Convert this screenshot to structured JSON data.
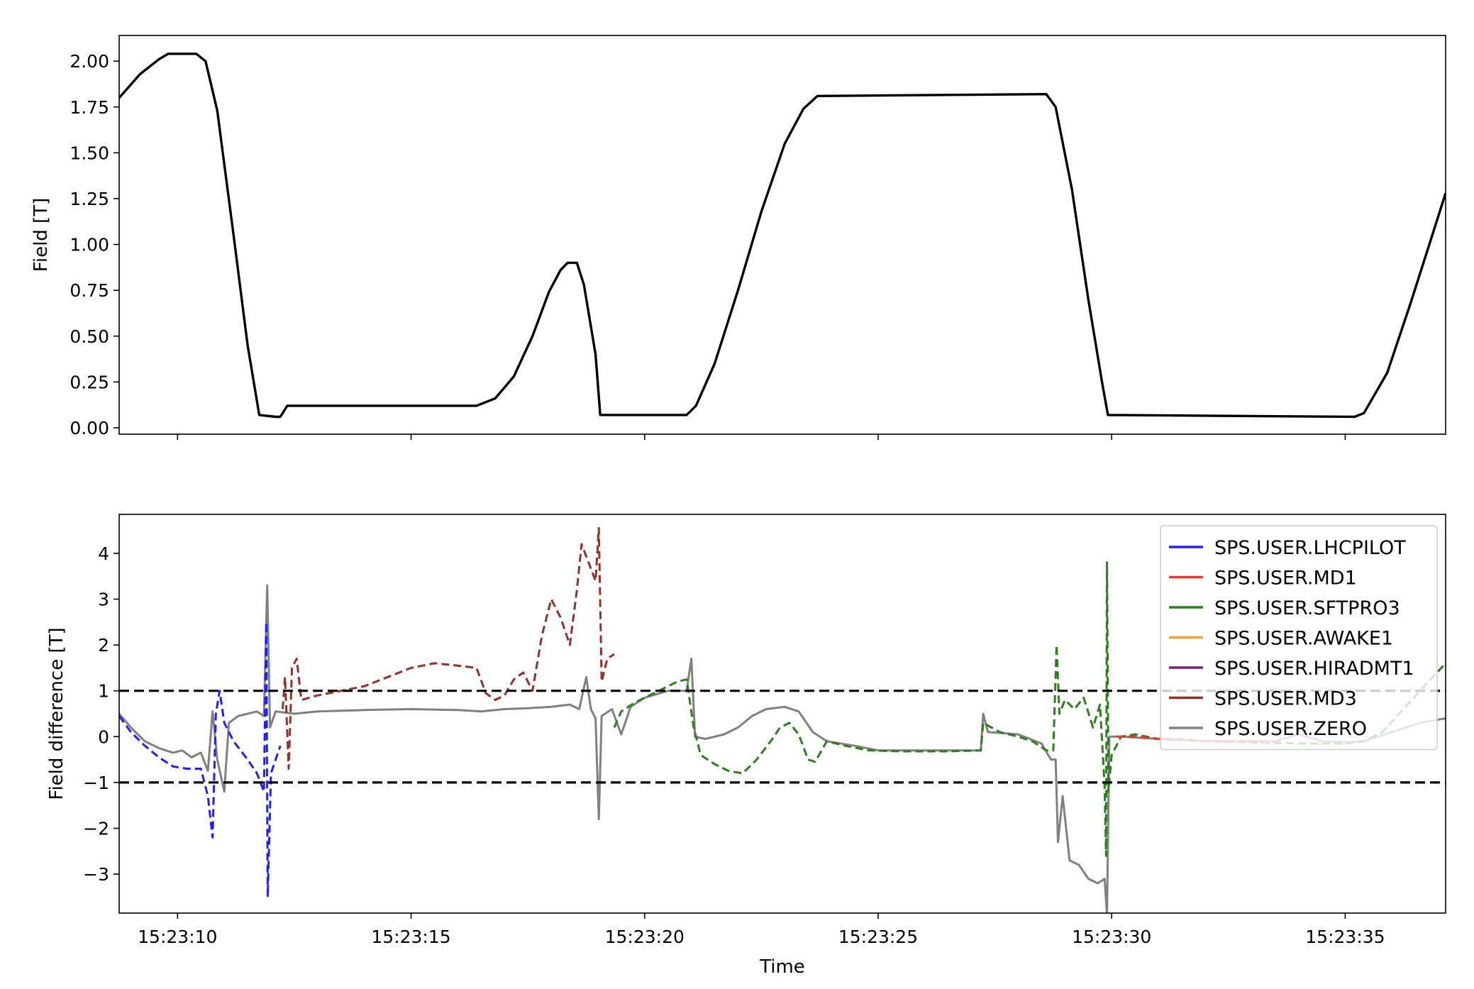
{
  "chart_data": [
    {
      "type": "line",
      "ylabel": "Field [T]",
      "xlabel": "",
      "x_range": [
        "15:23:08.75",
        "15:23:37.15"
      ],
      "ylim": [
        -0.035,
        2.14
      ],
      "yticks": [
        "0.00",
        "0.25",
        "0.50",
        "0.75",
        "1.00",
        "1.25",
        "1.50",
        "1.75",
        "2.00"
      ],
      "ytick_values": [
        0,
        0.25,
        0.5,
        0.75,
        1.0,
        1.25,
        1.5,
        1.75,
        2.0
      ],
      "xtick_values_s": [
        10,
        15,
        20,
        25,
        30,
        35
      ],
      "grid": false,
      "series": [
        {
          "color": "#000000",
          "style": "solid",
          "points": [
            [
              8.75,
              1.8
            ],
            [
              9.2,
              1.93
            ],
            [
              9.6,
              2.01
            ],
            [
              9.8,
              2.04
            ],
            [
              10.4,
              2.04
            ],
            [
              10.6,
              2.0
            ],
            [
              10.85,
              1.73
            ],
            [
              11.2,
              1.05
            ],
            [
              11.5,
              0.45
            ],
            [
              11.75,
              0.07
            ],
            [
              12.1,
              0.06
            ],
            [
              12.2,
              0.06
            ],
            [
              12.35,
              0.12
            ],
            [
              16.4,
              0.12
            ],
            [
              16.8,
              0.16
            ],
            [
              17.2,
              0.28
            ],
            [
              17.6,
              0.5
            ],
            [
              17.95,
              0.74
            ],
            [
              18.2,
              0.86
            ],
            [
              18.35,
              0.9
            ],
            [
              18.55,
              0.9
            ],
            [
              18.7,
              0.78
            ],
            [
              18.95,
              0.4
            ],
            [
              19.05,
              0.07
            ],
            [
              20.9,
              0.07
            ],
            [
              21.1,
              0.12
            ],
            [
              21.5,
              0.35
            ],
            [
              22.0,
              0.75
            ],
            [
              22.5,
              1.18
            ],
            [
              23.0,
              1.55
            ],
            [
              23.4,
              1.74
            ],
            [
              23.7,
              1.81
            ],
            [
              28.6,
              1.82
            ],
            [
              28.8,
              1.75
            ],
            [
              29.15,
              1.3
            ],
            [
              29.5,
              0.7
            ],
            [
              29.8,
              0.24
            ],
            [
              29.92,
              0.07
            ],
            [
              35.2,
              0.06
            ],
            [
              35.4,
              0.08
            ],
            [
              35.9,
              0.3
            ],
            [
              36.4,
              0.68
            ],
            [
              36.8,
              1.0
            ],
            [
              37.15,
              1.28
            ]
          ]
        }
      ]
    },
    {
      "type": "line",
      "xlabel": "Time",
      "ylabel": "Field difference [T]",
      "x_range": [
        "15:23:08.75",
        "15:23:37.15"
      ],
      "ylim": [
        -3.85,
        4.85
      ],
      "yticks": [
        "−3",
        "−2",
        "−1",
        "0",
        "1",
        "2",
        "3",
        "4"
      ],
      "ytick_values": [
        -3,
        -2,
        -1,
        0,
        1,
        2,
        3,
        4
      ],
      "xticks": [
        "15:23:10",
        "15:23:15",
        "15:23:20",
        "15:23:25",
        "15:23:30",
        "15:23:35"
      ],
      "xtick_values_s": [
        10,
        15,
        20,
        25,
        30,
        35
      ],
      "grid": false,
      "legend_position": "top-right",
      "thresholds": [
        1,
        -1
      ],
      "legend": [
        {
          "name": "SPS.USER.LHCPILOT",
          "color": "#1f1fff"
        },
        {
          "name": "SPS.USER.MD1",
          "color": "#e8392a"
        },
        {
          "name": "SPS.USER.SFTPRO3",
          "color": "#2e7d1f"
        },
        {
          "name": "SPS.USER.AWAKE1",
          "color": "#f0a030"
        },
        {
          "name": "SPS.USER.HIRADMT1",
          "color": "#7a1a7a"
        },
        {
          "name": "SPS.USER.MD3",
          "color": "#96302a"
        },
        {
          "name": "SPS.USER.ZERO",
          "color": "#808080"
        }
      ],
      "series": [
        {
          "name": "SPS.USER.ZERO",
          "color": "#808080",
          "style": "solid",
          "points": [
            [
              8.75,
              0.5
            ],
            [
              9.0,
              0.2
            ],
            [
              9.3,
              -0.1
            ],
            [
              9.6,
              -0.25
            ],
            [
              9.9,
              -0.35
            ],
            [
              10.1,
              -0.3
            ],
            [
              10.3,
              -0.45
            ],
            [
              10.5,
              -0.35
            ],
            [
              10.65,
              -0.75
            ],
            [
              10.75,
              0.55
            ],
            [
              10.85,
              -0.5
            ],
            [
              11.0,
              -1.2
            ],
            [
              11.1,
              0.3
            ],
            [
              11.3,
              0.45
            ],
            [
              11.5,
              0.5
            ],
            [
              11.7,
              0.55
            ],
            [
              11.85,
              0.45
            ],
            [
              11.92,
              3.3
            ],
            [
              11.98,
              0.2
            ],
            [
              12.1,
              0.55
            ],
            [
              12.5,
              0.5
            ],
            [
              13.0,
              0.55
            ],
            [
              14.0,
              0.58
            ],
            [
              15.0,
              0.6
            ],
            [
              16.0,
              0.58
            ],
            [
              16.5,
              0.55
            ],
            [
              17.0,
              0.6
            ],
            [
              17.5,
              0.62
            ],
            [
              18.0,
              0.65
            ],
            [
              18.4,
              0.7
            ],
            [
              18.6,
              0.6
            ],
            [
              18.75,
              1.3
            ],
            [
              18.85,
              0.6
            ],
            [
              18.95,
              0.4
            ],
            [
              19.02,
              -1.8
            ],
            [
              19.08,
              0.45
            ],
            [
              19.3,
              0.6
            ],
            [
              19.5,
              0.05
            ],
            [
              19.7,
              0.65
            ],
            [
              20.0,
              0.85
            ],
            [
              20.5,
              1.0
            ],
            [
              20.9,
              1.0
            ],
            [
              21.0,
              1.7
            ],
            [
              21.08,
              0.0
            ],
            [
              21.3,
              -0.05
            ],
            [
              21.7,
              0.05
            ],
            [
              22.0,
              0.2
            ],
            [
              22.3,
              0.45
            ],
            [
              22.6,
              0.6
            ],
            [
              23.0,
              0.65
            ],
            [
              23.3,
              0.55
            ],
            [
              23.6,
              0.1
            ],
            [
              23.9,
              -0.1
            ],
            [
              24.5,
              -0.2
            ],
            [
              25.0,
              -0.3
            ],
            [
              26.0,
              -0.3
            ],
            [
              27.2,
              -0.3
            ],
            [
              27.25,
              0.5
            ],
            [
              27.35,
              0.1
            ],
            [
              28.0,
              0.05
            ],
            [
              28.5,
              -0.15
            ],
            [
              28.7,
              -0.5
            ],
            [
              28.8,
              -0.5
            ],
            [
              28.85,
              -2.3
            ],
            [
              28.95,
              -1.3
            ],
            [
              29.1,
              -2.7
            ],
            [
              29.3,
              -2.8
            ],
            [
              29.5,
              -3.1
            ],
            [
              29.7,
              -3.2
            ],
            [
              29.85,
              -3.1
            ],
            [
              29.9,
              -3.9
            ],
            [
              29.95,
              0.0
            ],
            [
              30.2,
              0.0
            ],
            [
              31.0,
              -0.05
            ],
            [
              32.0,
              -0.1
            ],
            [
              33.0,
              -0.1
            ],
            [
              33.5,
              -0.1
            ],
            [
              34.0,
              0.05
            ],
            [
              34.5,
              -0.1
            ],
            [
              35.0,
              -0.12
            ],
            [
              35.4,
              -0.1
            ],
            [
              35.7,
              0.0
            ],
            [
              36.0,
              0.1
            ],
            [
              36.3,
              0.2
            ],
            [
              36.6,
              0.3
            ],
            [
              37.15,
              0.4
            ]
          ]
        },
        {
          "name": "SPS.USER.LHCPILOT",
          "color": "#1f1fff",
          "style": "dashed",
          "points": [
            [
              8.75,
              0.45
            ],
            [
              9.0,
              0.1
            ],
            [
              9.3,
              -0.2
            ],
            [
              9.6,
              -0.45
            ],
            [
              9.9,
              -0.65
            ],
            [
              10.2,
              -0.7
            ],
            [
              10.5,
              -0.7
            ],
            [
              10.65,
              -1.3
            ],
            [
              10.75,
              -2.2
            ],
            [
              10.82,
              0.5
            ],
            [
              10.9,
              1.0
            ],
            [
              11.0,
              0.3
            ],
            [
              11.2,
              -0.1
            ],
            [
              11.5,
              -0.5
            ],
            [
              11.7,
              -0.8
            ],
            [
              11.85,
              -1.2
            ],
            [
              11.9,
              2.5
            ],
            [
              11.93,
              -3.5
            ],
            [
              12.0,
              -0.8
            ],
            [
              12.1,
              -0.5
            ],
            [
              12.2,
              -0.2
            ]
          ]
        },
        {
          "name": "SPS.USER.MD3",
          "color": "#96302a",
          "style": "dashed",
          "points": [
            [
              12.25,
              0.6
            ],
            [
              12.3,
              1.3
            ],
            [
              12.38,
              -0.7
            ],
            [
              12.45,
              1.5
            ],
            [
              12.55,
              1.7
            ],
            [
              12.65,
              0.8
            ],
            [
              13.0,
              0.9
            ],
            [
              13.5,
              1.0
            ],
            [
              14.0,
              1.1
            ],
            [
              14.5,
              1.3
            ],
            [
              15.0,
              1.5
            ],
            [
              15.5,
              1.6
            ],
            [
              16.0,
              1.55
            ],
            [
              16.4,
              1.5
            ],
            [
              16.6,
              0.95
            ],
            [
              16.8,
              0.8
            ],
            [
              17.0,
              0.9
            ],
            [
              17.2,
              1.25
            ],
            [
              17.4,
              1.4
            ],
            [
              17.6,
              1.0
            ],
            [
              17.8,
              2.2
            ],
            [
              18.0,
              3.0
            ],
            [
              18.2,
              2.6
            ],
            [
              18.4,
              2.0
            ],
            [
              18.55,
              3.2
            ],
            [
              18.65,
              4.2
            ],
            [
              18.8,
              3.8
            ],
            [
              18.95,
              3.4
            ],
            [
              19.02,
              4.55
            ],
            [
              19.08,
              1.2
            ],
            [
              19.2,
              1.7
            ],
            [
              19.35,
              1.8
            ]
          ]
        },
        {
          "name": "SPS.USER.SFTPRO3",
          "color": "#2e7d1f",
          "style": "dashed",
          "points": [
            [
              19.35,
              0.2
            ],
            [
              19.5,
              0.55
            ],
            [
              19.8,
              0.75
            ],
            [
              20.1,
              0.9
            ],
            [
              20.4,
              1.05
            ],
            [
              20.7,
              1.2
            ],
            [
              20.9,
              1.25
            ],
            [
              21.05,
              0.2
            ],
            [
              21.2,
              -0.4
            ],
            [
              21.5,
              -0.6
            ],
            [
              21.8,
              -0.75
            ],
            [
              22.1,
              -0.8
            ],
            [
              22.4,
              -0.5
            ],
            [
              22.7,
              -0.1
            ],
            [
              22.9,
              0.2
            ],
            [
              23.1,
              0.3
            ],
            [
              23.3,
              0.05
            ],
            [
              23.5,
              -0.5
            ],
            [
              23.65,
              -0.55
            ],
            [
              23.9,
              -0.1
            ],
            [
              24.3,
              -0.2
            ],
            [
              24.8,
              -0.3
            ],
            [
              25.5,
              -0.32
            ],
            [
              26.5,
              -0.32
            ],
            [
              27.2,
              -0.3
            ],
            [
              27.25,
              0.3
            ],
            [
              27.6,
              0.1
            ],
            [
              28.0,
              0.0
            ],
            [
              28.3,
              -0.1
            ],
            [
              28.6,
              -0.3
            ],
            [
              28.75,
              -0.3
            ],
            [
              28.82,
              2.0
            ],
            [
              28.88,
              0.5
            ],
            [
              29.0,
              0.8
            ],
            [
              29.2,
              0.6
            ],
            [
              29.4,
              0.85
            ],
            [
              29.6,
              0.2
            ],
            [
              29.75,
              0.7
            ],
            [
              29.85,
              -1.1
            ],
            [
              29.88,
              -2.6
            ],
            [
              29.9,
              3.8
            ],
            [
              29.93,
              -1.2
            ],
            [
              30.0,
              -0.4
            ],
            [
              30.2,
              0.0
            ],
            [
              30.5,
              0.05
            ],
            [
              31.0,
              -0.05
            ],
            [
              32.0,
              -0.1
            ],
            [
              33.0,
              -0.12
            ],
            [
              34.0,
              -0.15
            ],
            [
              35.0,
              -0.15
            ],
            [
              35.4,
              -0.1
            ],
            [
              35.8,
              0.1
            ],
            [
              36.2,
              0.55
            ],
            [
              36.6,
              1.0
            ],
            [
              37.15,
              1.6
            ]
          ]
        },
        {
          "name": "SPS.USER.MD1",
          "color": "#e8392a",
          "style": "dashed",
          "points": [
            [
              30.1,
              0.0
            ],
            [
              30.5,
              0.0
            ],
            [
              31.0,
              -0.05
            ],
            [
              31.5,
              -0.05
            ],
            [
              32.0,
              -0.1
            ],
            [
              32.5,
              -0.1
            ],
            [
              33.0,
              -0.12
            ],
            [
              33.6,
              -0.12
            ]
          ]
        }
      ]
    }
  ]
}
